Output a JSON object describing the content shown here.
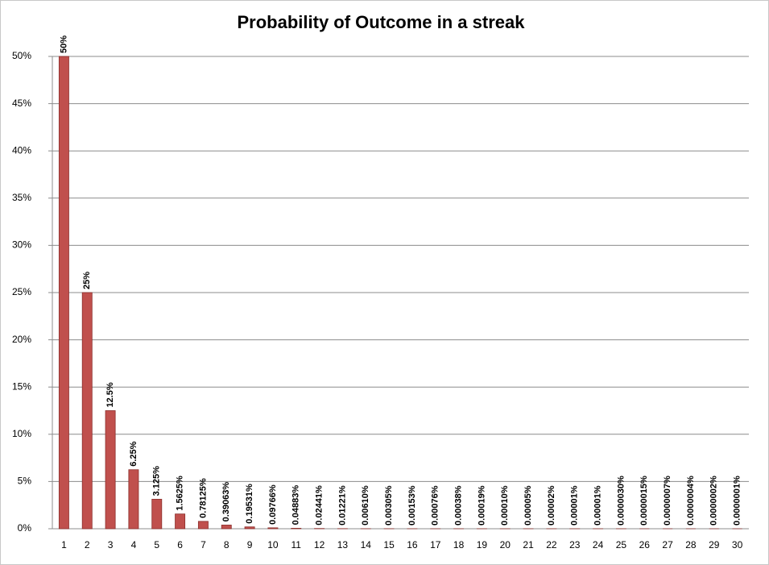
{
  "chart_data": {
    "type": "bar",
    "title": "Probability of Outcome in a streak",
    "categories": [
      "1",
      "2",
      "3",
      "4",
      "5",
      "6",
      "7",
      "8",
      "9",
      "10",
      "11",
      "12",
      "13",
      "14",
      "15",
      "16",
      "17",
      "18",
      "19",
      "20",
      "21",
      "22",
      "23",
      "24",
      "25",
      "26",
      "27",
      "28",
      "29",
      "30"
    ],
    "values": [
      50,
      25,
      12.5,
      6.25,
      3.125,
      1.5625,
      0.78125,
      0.39063,
      0.19531,
      0.09766,
      0.04883,
      0.02441,
      0.01221,
      0.0061,
      0.00305,
      0.00153,
      0.00076,
      0.00038,
      0.00019,
      0.0001,
      5e-05,
      2e-05,
      1e-05,
      1e-05,
      3e-06,
      1.5e-06,
      7e-07,
      4e-07,
      2e-07,
      1e-07
    ],
    "value_labels": [
      "50%",
      "25%",
      "12.5%",
      "6.25%",
      "3.125%",
      "1.5625%",
      "0.78125%",
      "0.39063%",
      "0.19531%",
      "0.09766%",
      "0.04883%",
      "0.02441%",
      "0.01221%",
      "0.00610%",
      "0.00305%",
      "0.00153%",
      "0.00076%",
      "0.00038%",
      "0.00019%",
      "0.00010%",
      "0.00005%",
      "0.00002%",
      "0.00001%",
      "0.00001%",
      "0.0000030%",
      "0.0000015%",
      "0.0000007%",
      "0.0000004%",
      "0.0000002%",
      "0.0000001%"
    ],
    "color": "#c0504d",
    "ylim": [
      0,
      50
    ],
    "yticks": [
      {
        "value": 0,
        "label": "0%"
      },
      {
        "value": 5,
        "label": "5%"
      },
      {
        "value": 10,
        "label": "10%"
      },
      {
        "value": 15,
        "label": "15%"
      },
      {
        "value": 20,
        "label": "20%"
      },
      {
        "value": 25,
        "label": "25%"
      },
      {
        "value": 30,
        "label": "30%"
      },
      {
        "value": 35,
        "label": "35%"
      },
      {
        "value": 40,
        "label": "40%"
      },
      {
        "value": 45,
        "label": "45%"
      },
      {
        "value": 50,
        "label": "50%"
      }
    ],
    "grid": true
  }
}
